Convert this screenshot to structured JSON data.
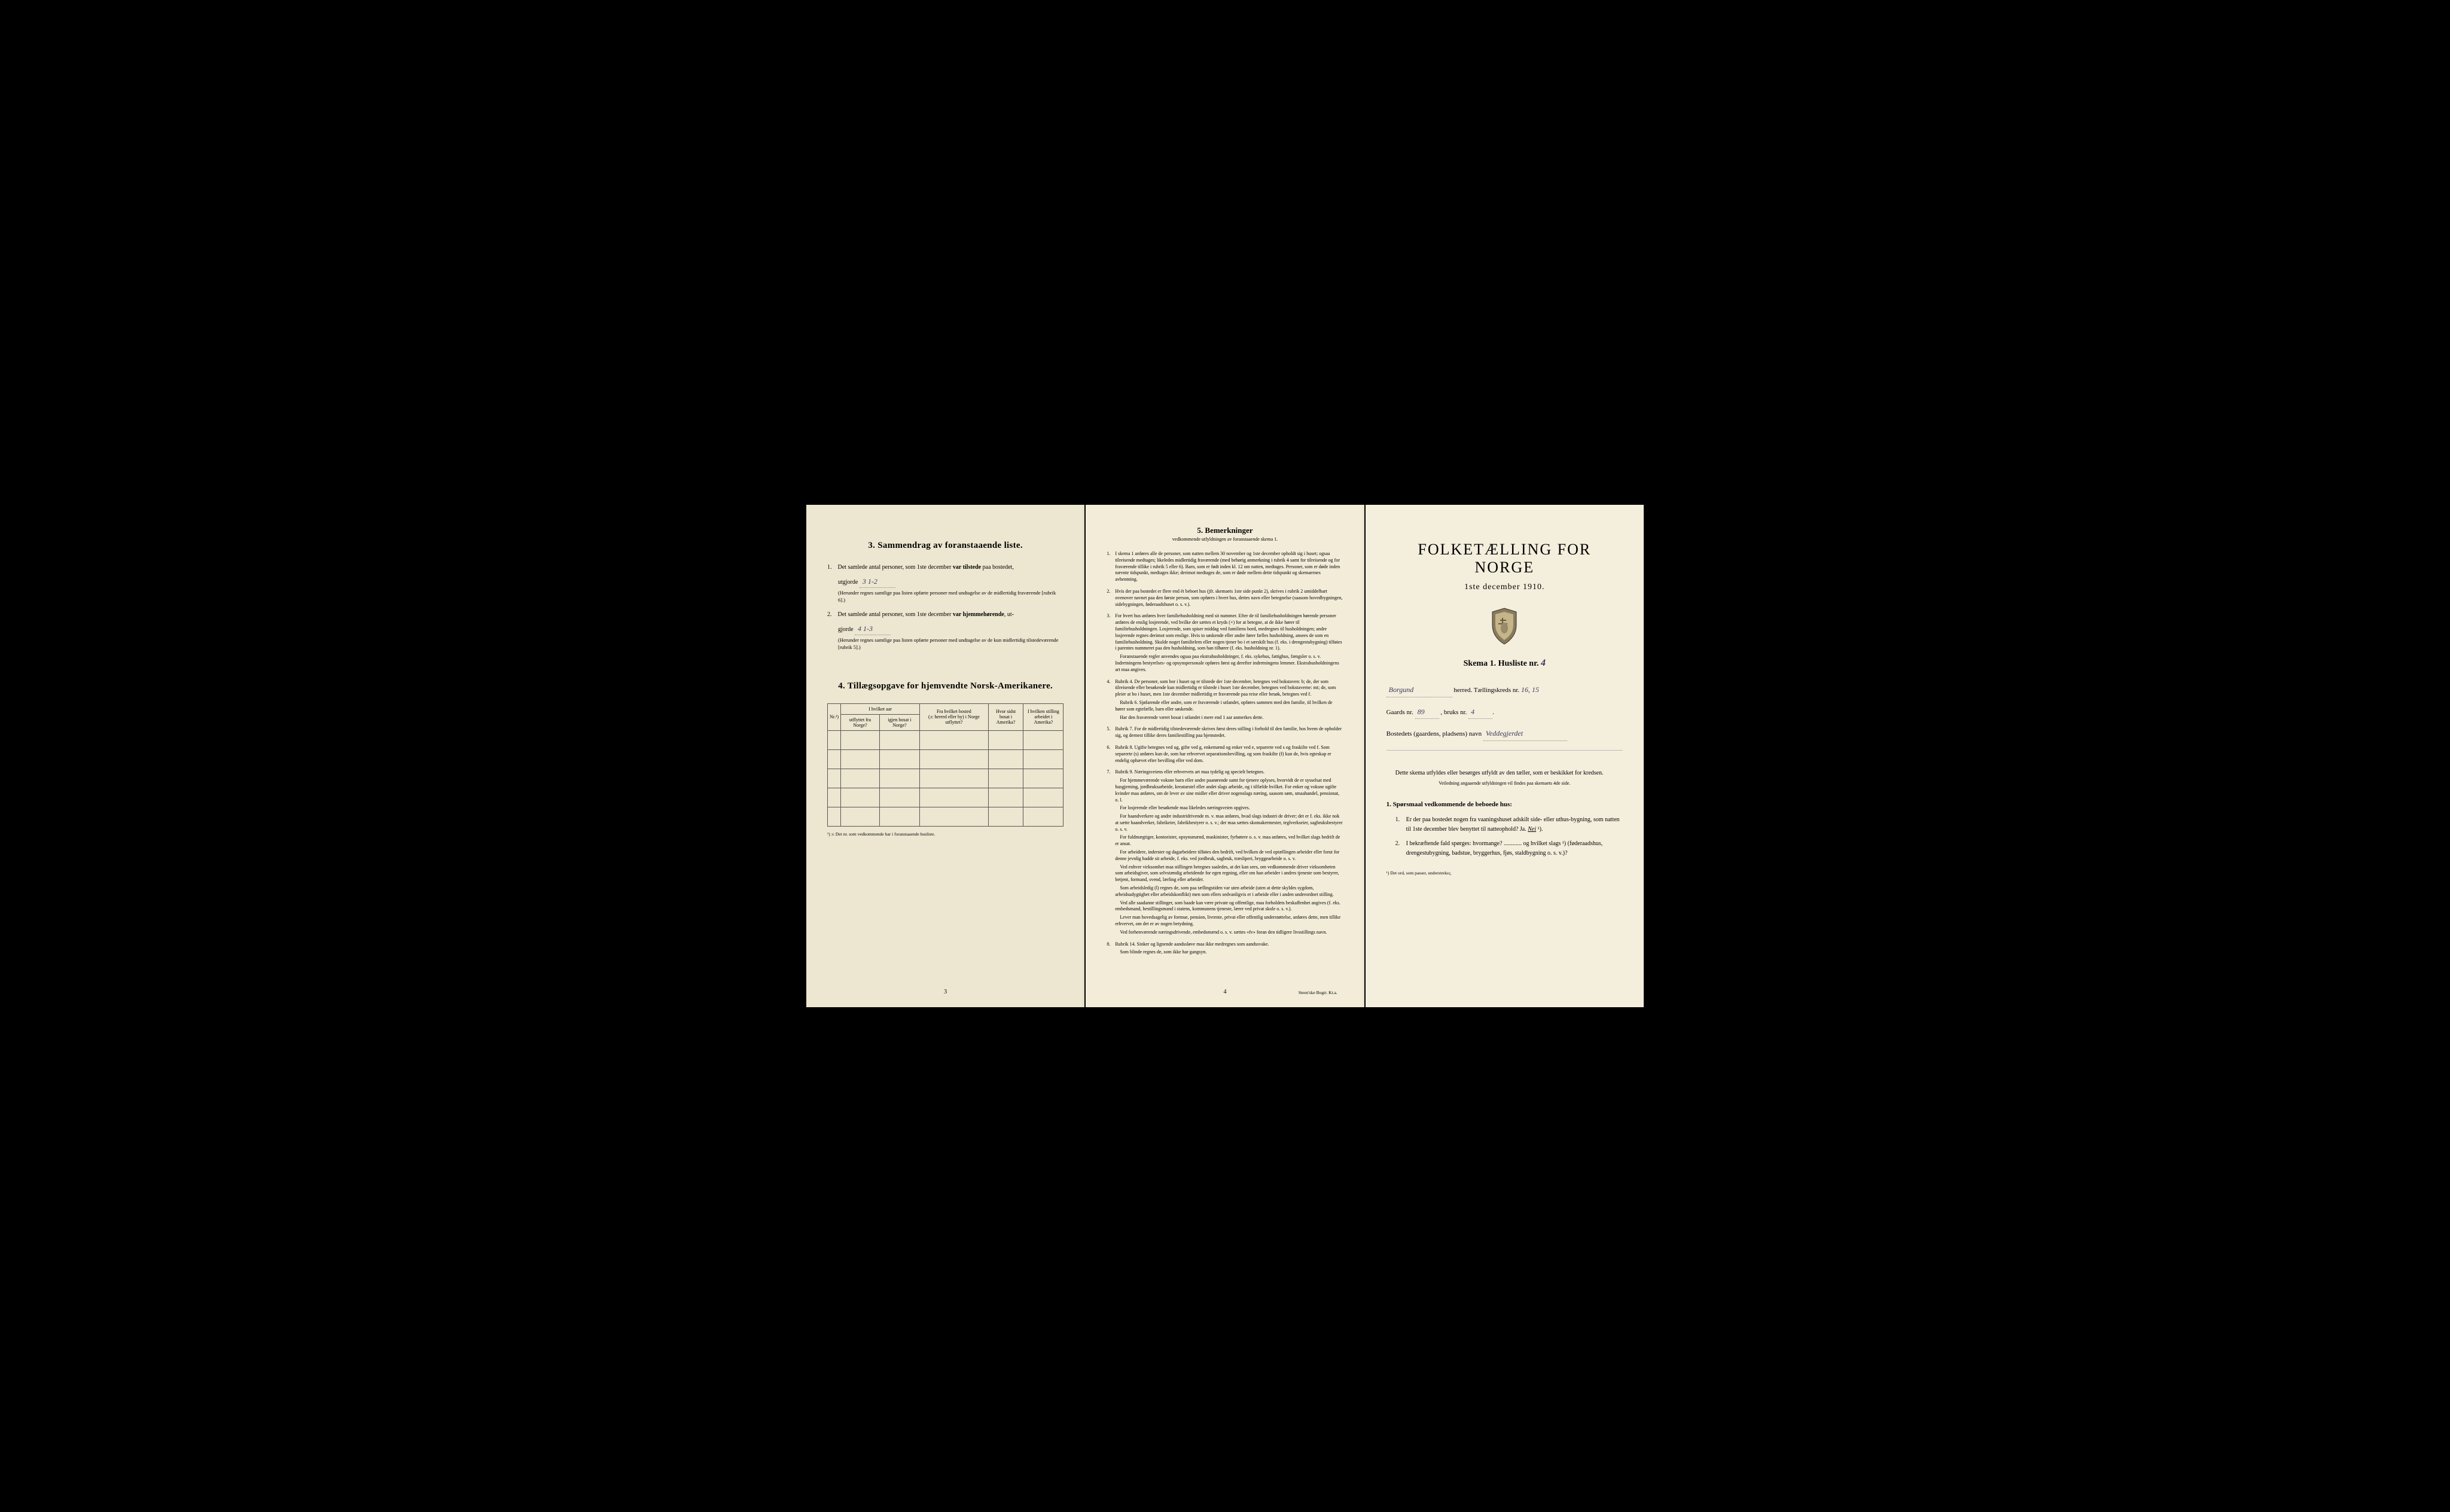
{
  "leftPage": {
    "section3Title": "3.  Sammendrag av foranstaaende liste.",
    "item1": {
      "num": "1.",
      "textA": "Det samlede antal personer, som 1ste december ",
      "textB": "var tilstede",
      "textC": " paa bostedet,",
      "line2": "utgjorde",
      "handwritten": "3   1-2",
      "note": "(Herunder regnes samtlige paa listen opførte personer med undtagelse av de midlertidig fraværende [rubrik 6].)"
    },
    "item2": {
      "num": "2.",
      "textA": "Det samlede antal personer, som 1ste december ",
      "textB": "var hjemmehørende",
      "textC": ", ut-",
      "line2": "gjorde",
      "handwritten": "4   1-3",
      "note": "(Herunder regnes samtlige paa listen opførte personer med undtagelse av de kun midlertidig tilstedeværende [rubrik 5].)"
    },
    "section4Title": "4.  Tillægsopgave for hjemvendte Norsk-Amerikanere.",
    "tableHeaders": {
      "col1": "Nr.¹)",
      "col2a": "I hvilket aar",
      "col2b": "utflyttet fra Norge?",
      "col2c": "igjen bosat i Norge?",
      "col3a": "Fra hvilket bosted",
      "col3b": "(ɔ: herred eller by) i Norge utflyttet?",
      "col4a": "Hvor sidst",
      "col4b": "bosat i Amerika?",
      "col5a": "I hvilken stilling",
      "col5b": "arbeidet i Amerika?"
    },
    "tableFootnote": "¹) ɔ: Det nr. som vedkommende har i foranstaaende husliste.",
    "pageNum": "3"
  },
  "middlePage": {
    "title": "5.  Bemerkninger",
    "subtitle": "vedkommende utfyldningen av foranstaaende skema 1.",
    "remarks": [
      {
        "num": "1.",
        "paras": [
          "I skema 1 anføres alle de personer, som natten mellem 30 november og 1ste december opholdt sig i huset; ogsaa tilreisende medtages; likeledes midlertidig fraværende (med behørig anmerkning i rubrik 4 samt for tilreisende og for fraværende tillike i rubrik 5 eller 6). Barn, som er født inden kl. 12 om natten, medtages. Personer, som er døde inden nævnte tidspunkt, medtages ikke; derimot medtages de, som er døde mellem dette tidspunkt og skemaernes avhentning."
        ]
      },
      {
        "num": "2.",
        "paras": [
          "Hvis der paa bostedet er flere end ét beboet hus (jfr. skemaets 1ste side punkt 2), skrives i rubrik 2 umiddelbart ovenover navnet paa den første person, som opføres i hvert hus, dettes navn eller betegnelse (saasom hovedbygningen, sidebygningen, føderaadshuset o. s. v.)."
        ]
      },
      {
        "num": "3.",
        "paras": [
          "For hvert hus anføres hver familiehusholdning med sit nummer. Efter de til familiehusholdningen hørende personer anføres de enslig losjerende, ved hvilke der sættes et kryds (×) for at betegne, at de ikke hører til familiehusholdningen. Losjerende, som spiser middag ved familiens bord, medregnes til husholdningen; andre losjerende regnes derimot som enslige. Hvis to søskende eller andre fører fælles husholdning, ansees de som en familiehusholdning. Skulde noget familielem eller nogen tjener bo i et særskilt hus (f. eks. i drengestubygning) tilføies i parentes nummeret paa den husholdning, som han tilhører (f. eks. husholdning nr. 1).",
          "Foranstaaende regler anvendes ogsaa paa ekstrahusholdninger, f. eks. sykehus, fattighus, fængsler o. s. v. Indretningens bestyrelses- og opsynspersonale opføres først og derefter indretningens lemmer. Ekstrahusholdningens art maa angives."
        ]
      },
      {
        "num": "4.",
        "paras": [
          "Rubrik 4. De personer, som bor i huset og er tilstede der 1ste december, betegnes ved bokstaven: b; de, der som tilreisende eller besøkende kun midlertidig er tilstede i huset 1ste december, betegnes ved bokstaverne: mt; de, som pleier at bo i huset, men 1ste december midlertidig er fraværende paa reise eller besøk, betegnes ved f.",
          "Rubrik 6. Sjøfarende eller andre, som er fraværende i utlandet, opføres sammen med den familie, til hvilken de hører som egtefælle, barn eller søskende.",
          "Har den fraværende været bosat i utlandet i mere end 1 aar anmerkes dette."
        ]
      },
      {
        "num": "5.",
        "paras": [
          "Rubrik 7. For de midlertidig tilstedeværende skrives først deres stilling i forhold til den familie, hos hvem de opholder sig, og dernest tillike deres familiestilling paa hjemstedet."
        ]
      },
      {
        "num": "6.",
        "paras": [
          "Rubrik 8. Ugifte betegnes ved ug, gifte ved g, enkemænd og enker ved e, separerte ved s og fraskilte ved f. Som separerte (s) anføres kun de, som har erhvervet separationsbevilling, og som fraskilte (f) kun de, hvis egteskap er endelig ophævet efter bevilling eller ved dom."
        ]
      },
      {
        "num": "7.",
        "paras": [
          "Rubrik 9. Næringsveiens eller erhvervets art maa tydelig og specielt betegnes.",
          "For hjemmeværende voksne barn eller andre paarørende samt for tjenere oplyses, hvorvidt de er sysselsat med husgjerning, jordbruksarbeide, kreaturstel eller andet slags arbeide, og i tilfælde hvilket. For enker og voksne ugifte kvinder maa anføres, om de lever av sine midler eller driver nogenslags næring, saasom søm, smaahandel, pensionat, o. l.",
          "For losjerende eller besøkende maa likeledes næringsveien opgives.",
          "For haandverkere og andre industridrivende m. v. maa anføres, hvad slags industri de driver; det er f. eks. ikke nok at sætte haandverker, fabrikeier, fabrikbestyrer o. s. v.; der maa sættes skomakermester, teglverkseier, sagbruksbestyrer o. s. v.",
          "For fuldmægtiger, kontorister, opsynsmænd, maskinister, fyrbøtere o. s. v. maa anføres, ved hvilket slags bedrift de er ansat.",
          "For arbeidere, inderster og dagarbeidere tilføies den bedrift, ved hvilken de ved optællingen arbeider eller forut for denne jevnlig hadde sit arbeide, f. eks. ved jordbruk, sagbruk, træsliperi, bryggearbeide o. s. v.",
          "Ved enhver virksomhet maa stillingen betegnes saaledes, at det kan sees, om vedkommende driver virksomheten som arbeidsgiver, som selvstændig arbeidende for egen regning, eller om han arbeider i andres tjeneste som bestyrer, betjent, formand, svend, lærling eller arbeider.",
          "Som arbeidsledig (l) regnes de, som paa tællingstiden var uten arbeide (uten at dette skyldes sygdom, arbeidsudygtighet eller arbeidskonflikt) men som ellers sedvanligvis er i arbeide eller i anden underordnet stilling.",
          "Ved alle saadanne stillinger, som baade kan være private og offentlige, maa forholdets beskaffenhet angives (f. eks. embedsmand, bestillingsmand i statens, kommunens tjeneste, lærer ved privat skole o. s. v.).",
          "Lever man hovedsagelig av formue, pension, livrente, privat eller offentlig understøttelse, anføres dette, men tillike erhvervet, om det er av nogen betydning.",
          "Ved forhenværende næringsdrivende, embedsmænd o. s. v. sættes «fv» foran den tidligere livsstillings navn."
        ]
      },
      {
        "num": "8.",
        "paras": [
          "Rubrik 14. Sinker og lignende aandssløve maa ikke medregnes som aandssvake.",
          "Som blinde regnes de, som ikke har gangsyn."
        ]
      }
    ],
    "pageNum": "4",
    "printer": "Steen'ske Bogtr. Kr.a."
  },
  "rightPage": {
    "mainTitle": "FOLKETÆLLING FOR NORGE",
    "mainDate": "1ste december 1910.",
    "skemaLabel": "Skema 1.  Husliste nr.",
    "skemaNum": "4",
    "herredLine": {
      "value": "Borgund",
      "label": "herred.  Tællingskreds nr.",
      "kredsNum": "16, 15"
    },
    "gaardLine": {
      "label1": "Gaards nr.",
      "val1": "89",
      "label2": ", bruks nr.",
      "val2": "4"
    },
    "bostedLine": {
      "label": "Bostedets (gaardens, pladsens) navn",
      "value": "Veddegjerdet"
    },
    "instruction": "Dette skema utfyldes eller besørges utfyldt av den tæller, som er beskikket for kredsen.",
    "instructionSub": "Veiledning angaaende utfyldningen vil findes paa skemaets 4de side.",
    "qSectionTitle": "1. Spørsmaal vedkommende de beboede hus:",
    "q1": {
      "num": "1.",
      "text": "Er der paa bostedet nogen fra vaaningshuset adskilt side- eller uthus-bygning, som natten til 1ste december blev benyttet til natteophold?   Ja.   ",
      "answer": "Nei",
      "sup": " ¹)."
    },
    "q2": {
      "num": "2.",
      "text": "I bekræftende fald spørges: hvormange? ............ og hvilket slags ¹) (føderaadshus, drengestubygning, badstue, bryggerhus, fjøs, staldbygning o. s. v.)?"
    },
    "footnote": "¹) Det ord, som passer, understrekες."
  }
}
